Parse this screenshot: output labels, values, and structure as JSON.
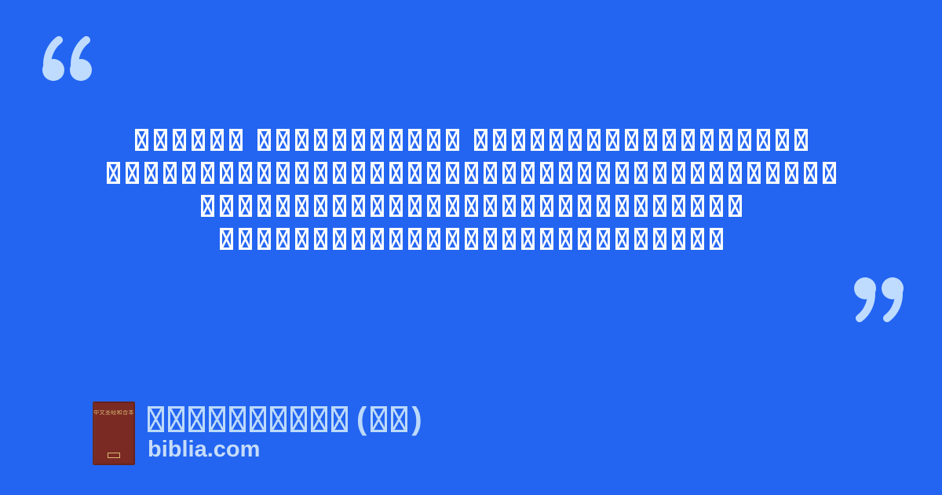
{
  "colors": {
    "background": "#2365f1",
    "quote_glyph": "#bfdbfe",
    "quote_text": "#fafcff",
    "footer_text": "#bcd9fb",
    "site_text": "#c6dcf9",
    "cover_background": "#7a2a22",
    "cover_text": "#d9b977"
  },
  "quote": {
    "open_mark": "“",
    "close_mark": "”",
    "missing_glyph": "tofu-box-with-x",
    "lines": [
      {
        "groups": [
          6,
          11,
          18
        ]
      },
      {
        "groups": [
          39
        ]
      },
      {
        "groups": [
          29
        ]
      },
      {
        "groups": [
          27
        ]
      }
    ]
  },
  "footer": {
    "title": {
      "main_boxes": 10,
      "open_paren": "(",
      "paren_boxes": 2,
      "close_paren": ")"
    },
    "site": "biblia.com",
    "cover_title": "中文圣经和合本"
  }
}
